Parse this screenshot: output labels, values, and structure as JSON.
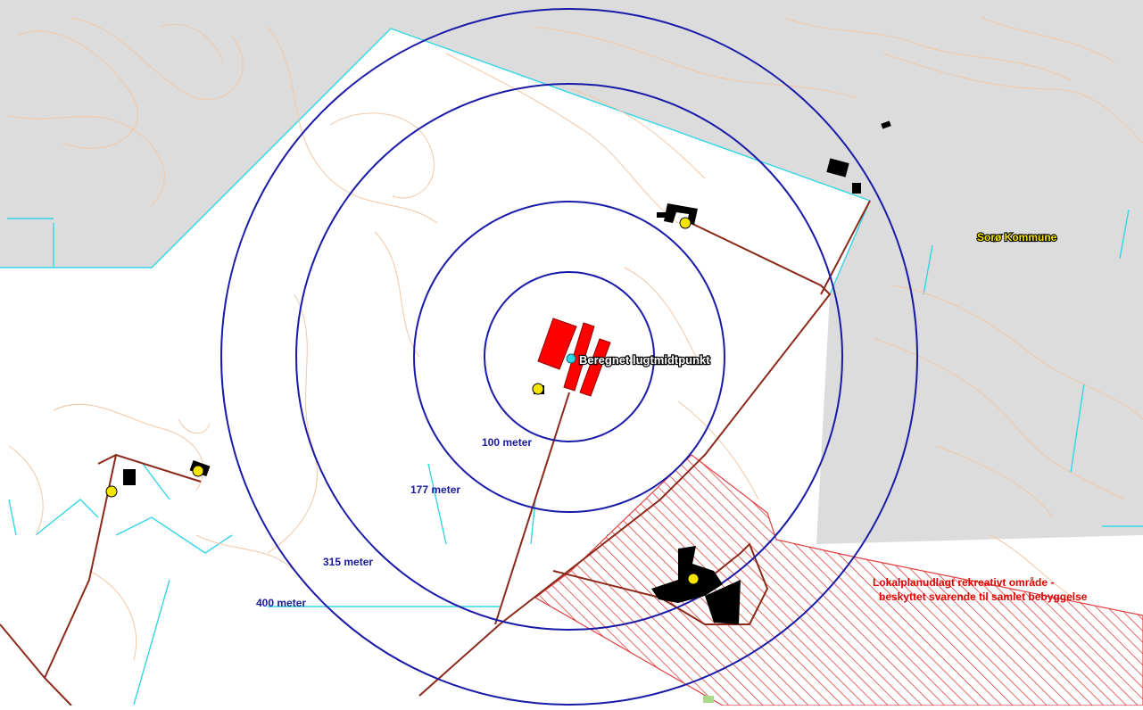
{
  "map": {
    "labels": {
      "odor_center": "Beregnet lugtmidtpunkt",
      "municipality": "Sorø Kommune",
      "zone_line1": "Lokalplanudlagt rekreativt område -",
      "zone_line2": "beskyttet svarende til samlet bebyggelse"
    },
    "rings": [
      {
        "distance_m": 100,
        "label": "100 meter"
      },
      {
        "distance_m": 177,
        "label": "177 meter"
      },
      {
        "distance_m": 315,
        "label": "315 meter"
      },
      {
        "distance_m": 400,
        "label": "400 meter"
      }
    ],
    "colors": {
      "background_outside": "#dcdcdc",
      "ring": "#1a1aa8",
      "boundary": "#33d6e6",
      "contour": "#f0c8a8",
      "road": "#8b2a1a",
      "facility": "#ff0000",
      "dwelling_marker": "#f5e400",
      "recreational_zone": "#e04040"
    }
  }
}
